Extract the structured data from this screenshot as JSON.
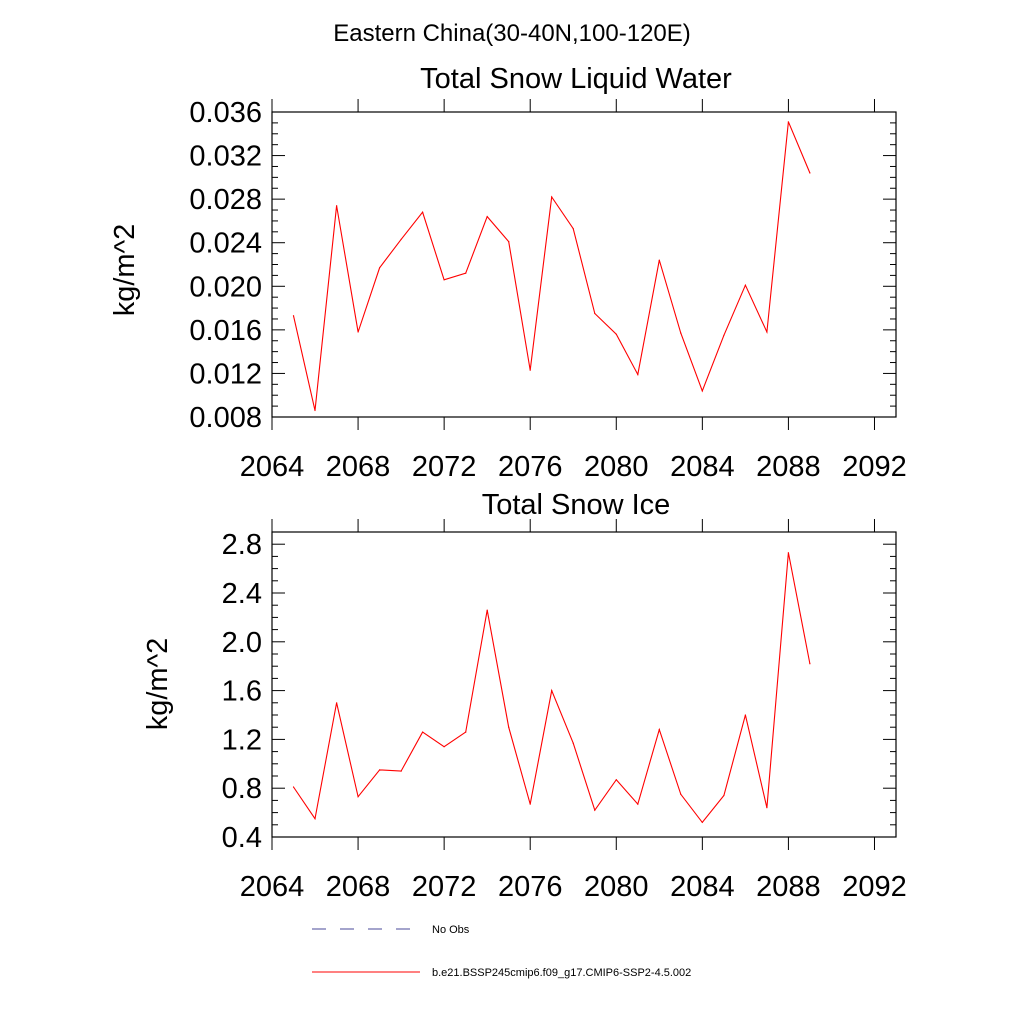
{
  "suptitle": "Eastern China(30-40N,100-120E)",
  "chart_data": [
    {
      "type": "line",
      "title": "Total Snow Liquid Water",
      "xlabel": "",
      "ylabel": "kg/m^2",
      "xlim": [
        2064,
        2093
      ],
      "ylim": [
        0.008,
        0.036
      ],
      "xticks": [
        "2064",
        "2068",
        "2072",
        "2076",
        "2080",
        "2084",
        "2088",
        "2092"
      ],
      "yticks": [
        "0.008",
        "0.012",
        "0.016",
        "0.020",
        "0.024",
        "0.028",
        "0.032",
        "0.036"
      ],
      "grid": false,
      "series": [
        {
          "name": "b.e21.BSSP245cmip6.f09_g17.CMIP6-SSP2-4.5.002",
          "color": "#ff0000",
          "x": [
            2065,
            2066,
            2067,
            2068,
            2069,
            2070,
            2071,
            2072,
            2073,
            2074,
            2075,
            2076,
            2077,
            2078,
            2079,
            2080,
            2081,
            2082,
            2083,
            2084,
            2085,
            2086,
            2087,
            2088,
            2089
          ],
          "values": [
            0.0173,
            0.0086,
            0.0274,
            0.0158,
            0.0217,
            0.0243,
            0.0268,
            0.0206,
            0.0212,
            0.0264,
            0.0241,
            0.0123,
            0.0282,
            0.0253,
            0.0175,
            0.0156,
            0.0119,
            0.0224,
            0.0157,
            0.0104,
            0.0155,
            0.0201,
            0.0158,
            0.0351,
            0.0304
          ]
        }
      ]
    },
    {
      "type": "line",
      "title": "Total Snow Ice",
      "xlabel": "",
      "ylabel": "kg/m^2",
      "xlim": [
        2064,
        2093
      ],
      "ylim": [
        0.4,
        2.9
      ],
      "xticks": [
        "2064",
        "2068",
        "2072",
        "2076",
        "2080",
        "2084",
        "2088",
        "2092"
      ],
      "yticks": [
        "0.4",
        "0.8",
        "1.2",
        "1.6",
        "2.0",
        "2.4",
        "2.8"
      ],
      "grid": false,
      "series": [
        {
          "name": "b.e21.BSSP245cmip6.f09_g17.CMIP6-SSP2-4.5.002",
          "color": "#ff0000",
          "x": [
            2065,
            2066,
            2067,
            2068,
            2069,
            2070,
            2071,
            2072,
            2073,
            2074,
            2075,
            2076,
            2077,
            2078,
            2079,
            2080,
            2081,
            2082,
            2083,
            2084,
            2085,
            2086,
            2087,
            2088,
            2089
          ],
          "values": [
            0.81,
            0.55,
            1.5,
            0.73,
            0.95,
            0.94,
            1.26,
            1.14,
            1.26,
            2.26,
            1.3,
            0.67,
            1.6,
            1.17,
            0.62,
            0.87,
            0.67,
            1.28,
            0.75,
            0.52,
            0.74,
            1.4,
            0.64,
            2.73,
            1.82
          ]
        }
      ]
    }
  ],
  "legend": {
    "placement": "bottom",
    "items": [
      {
        "label": "No Obs",
        "color": "#4a4a9a",
        "style": "dashed"
      },
      {
        "label": "b.e21.BSSP245cmip6.f09_g17.CMIP6-SSP2-4.5.002",
        "color": "#ff0000",
        "style": "solid"
      }
    ]
  }
}
